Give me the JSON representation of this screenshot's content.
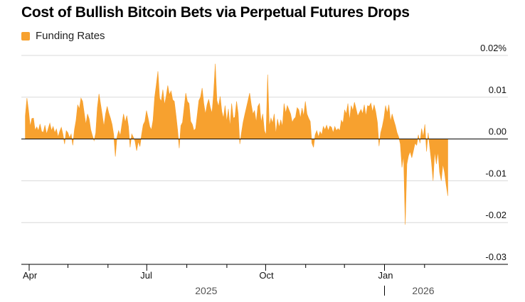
{
  "title": "Cost of Bullish Bitcoin Bets via Perpetual Futures Drops",
  "legend": {
    "label": "Funding Rates",
    "color": "#f7a12f"
  },
  "chart_data": {
    "type": "area",
    "title": "Cost of Bullish Bitcoin Bets via Perpetual Futures Drops",
    "series": [
      {
        "name": "Funding Rates",
        "color": "#f7a12f",
        "unit": "%",
        "values": [
          0.0055,
          0.0098,
          0.0068,
          0.003,
          0.0049,
          0.005,
          0.0021,
          0.0029,
          0.002,
          0.0036,
          0.0018,
          0.0016,
          0.0033,
          0.0012,
          0.0025,
          0.0038,
          0.002,
          0.003,
          0.0015,
          0.0024,
          0.0005,
          0.0018,
          0.0028,
          0.0011,
          -0.0012,
          0.002,
          0.0015,
          0.0003,
          0.0012,
          -0.0015,
          0.0022,
          0.0045,
          0.0082,
          0.0072,
          0.0098,
          0.009,
          0.0062,
          0.0035,
          0.006,
          0.0048,
          0.0022,
          0.0008,
          -0.0004,
          0.0014,
          0.0075,
          0.0108,
          0.0083,
          0.0058,
          0.003,
          0.006,
          0.0078,
          0.0062,
          0.005,
          0.0035,
          0.001,
          -0.0042,
          0.0005,
          0.002,
          0.0008,
          0.0035,
          0.006,
          0.004,
          0.0056,
          0.003,
          -0.002,
          0.0012,
          0.0004,
          -0.0005,
          -0.0028,
          -0.0006,
          -0.0018,
          0.001,
          0.0034,
          0.0042,
          0.0068,
          0.005,
          0.003,
          0.0022,
          0.0045,
          0.01,
          0.013,
          0.0162,
          0.0098,
          0.009,
          0.0118,
          0.0082,
          0.0102,
          0.0128,
          0.0106,
          0.0115,
          0.0094,
          0.009,
          0.0058,
          0.0022,
          -0.0022,
          0.0032,
          0.004,
          0.0075,
          0.011,
          0.009,
          0.0085,
          0.0042,
          0.0035,
          0.002,
          0.0025,
          0.0058,
          0.0092,
          0.01,
          0.0122,
          0.0085,
          0.006,
          0.0082,
          0.0095,
          0.0075,
          0.0062,
          0.011,
          0.018,
          0.0092,
          0.0078,
          0.0102,
          0.0066,
          0.005,
          0.008,
          0.0042,
          0.0072,
          0.003,
          0.0085,
          0.005,
          0.0052,
          0.009,
          0.0061,
          -0.0012,
          0.0015,
          0.004,
          0.0058,
          0.0075,
          0.0092,
          0.011,
          0.0082,
          0.006,
          0.0068,
          0.004,
          0.0078,
          0.0085,
          0.004,
          0.006,
          0.002,
          0.001,
          0.0154,
          0.003,
          0.005,
          0.0038,
          0.006,
          0.0012,
          0.0048,
          0.0028,
          0.0046,
          0.003,
          0.0085,
          0.0062,
          0.008,
          0.007,
          0.006,
          0.004,
          0.0048,
          0.0052,
          0.0075,
          0.007,
          0.005,
          0.0074,
          0.0055,
          0.009,
          0.006,
          0.005,
          0.0042,
          -0.001,
          -0.002,
          0.001,
          0.002,
          0.0005,
          0.0018,
          0.001,
          0.003,
          0.0022,
          0.0033,
          0.002,
          0.0031,
          0.0028,
          0.0015,
          0.003,
          0.002,
          0.0025,
          0.002,
          0.0045,
          0.0038,
          0.007,
          0.006,
          0.0085,
          0.0045,
          0.008,
          0.0068,
          0.0088,
          0.0072,
          0.0055,
          0.0063,
          0.0071,
          0.006,
          0.0082,
          0.0055,
          0.008,
          0.0078,
          0.0086,
          0.0065,
          0.0082,
          0.0065,
          0.004,
          -0.0017,
          0.0015,
          0.003,
          0.005,
          0.008,
          0.0062,
          0.0082,
          0.0042,
          0.006,
          0.0045,
          0.0032,
          0.0015,
          0.0005,
          -0.0012,
          -0.0068,
          -0.004,
          -0.0205,
          -0.006,
          -0.004,
          -0.003,
          -0.0045,
          -0.0028,
          -0.001,
          -0.0015,
          0.001,
          -0.001,
          0.0025,
          0.0005,
          0.0035,
          -0.003,
          0.0015,
          -0.002,
          -0.0055,
          -0.01,
          -0.003,
          -0.006,
          -0.003,
          -0.008,
          -0.01,
          -0.006,
          -0.008,
          -0.011,
          -0.0136
        ]
      }
    ],
    "x_range": [
      "2025-03-29",
      "2026-02-19"
    ],
    "x_ticks": [
      {
        "label": "Apr",
        "date": "2025-04-01"
      },
      {
        "label": "Jul",
        "date": "2025-07-01"
      },
      {
        "label": "Oct",
        "date": "2025-10-01"
      },
      {
        "label": "Jan",
        "date": "2026-01-01"
      }
    ],
    "x_minor_ticks": [
      "2025-05-01",
      "2025-06-01",
      "2025-08-01",
      "2025-09-01",
      "2025-11-01",
      "2025-12-01",
      "2026-02-01"
    ],
    "year_labels": [
      {
        "label": "2025",
        "date": "2025-08-16"
      },
      {
        "label": "2026",
        "date": "2026-01-31"
      }
    ],
    "year_divider": "2026-01-01",
    "ylim": [
      -0.03,
      0.02
    ],
    "y_ticks": [
      {
        "value": 0.02,
        "label": "0.02%"
      },
      {
        "value": 0.01,
        "label": "0.01"
      },
      {
        "value": 0.0,
        "label": "0.00"
      },
      {
        "value": -0.01,
        "label": "-0.01"
      },
      {
        "value": -0.02,
        "label": "-0.02"
      },
      {
        "value": -0.03,
        "label": "-0.03"
      }
    ],
    "grid": true,
    "legend_position": "top-left",
    "xlabel": "",
    "ylabel": ""
  }
}
